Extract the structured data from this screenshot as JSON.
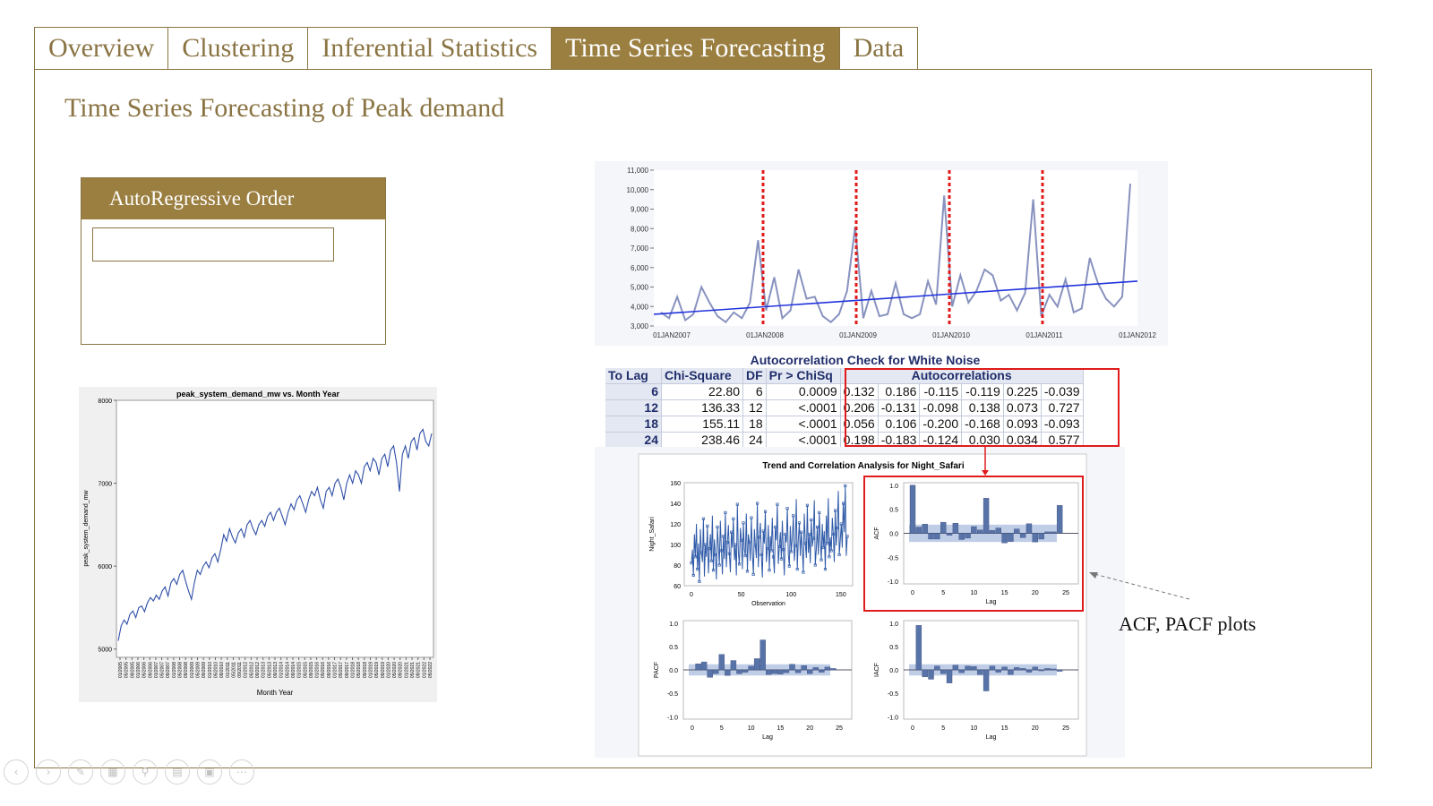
{
  "tabs": [
    {
      "label": "Overview",
      "active": false
    },
    {
      "label": "Clustering",
      "active": false
    },
    {
      "label": "Inferential Statistics",
      "active": false
    },
    {
      "label": "Time Series Forecasting",
      "active": true
    },
    {
      "label": "Data",
      "active": false
    }
  ],
  "page_title": "Time Series Forecasting of Peak demand",
  "ar_order": {
    "label": "AutoRegressive Order",
    "value": ""
  },
  "annotation": "ACF, PACF plots",
  "colors": {
    "accent": "#9b7f40",
    "border": "#8a7443",
    "line_blue": "#2f4fa8",
    "highlight_red": "#e01b1b"
  },
  "white_noise": {
    "title": "Autocorrelation Check for White Noise",
    "headers": [
      "To Lag",
      "Chi-Square",
      "DF",
      "Pr > ChiSq",
      "Autocorrelations"
    ],
    "rows": [
      {
        "lag": "6",
        "chi": "22.80",
        "df": "6",
        "pr": "0.0009",
        "ac": [
          "0.132",
          "0.186",
          "-0.115",
          "-0.119",
          "0.225",
          "-0.039"
        ]
      },
      {
        "lag": "12",
        "chi": "136.33",
        "df": "12",
        "pr": "<.0001",
        "ac": [
          "0.206",
          "-0.131",
          "-0.098",
          "0.138",
          "0.073",
          "0.727"
        ]
      },
      {
        "lag": "18",
        "chi": "155.11",
        "df": "18",
        "pr": "<.0001",
        "ac": [
          "0.056",
          "0.106",
          "-0.200",
          "-0.168",
          "0.093",
          "-0.093"
        ]
      },
      {
        "lag": "24",
        "chi": "238.46",
        "df": "24",
        "pr": "<.0001",
        "ac": [
          "0.198",
          "-0.183",
          "-0.124",
          "0.030",
          "0.034",
          "0.577"
        ]
      }
    ]
  },
  "chart_data": [
    {
      "type": "line",
      "title": "peak_system_demand_mw vs. Month Year",
      "xlabel": "Month Year",
      "ylabel": "peak_system_demand_mw",
      "ylim": [
        4900,
        8000
      ],
      "yticks": [
        "5000",
        "6000",
        "7000",
        "8000"
      ],
      "xticks": [
        "01/2005",
        "05/2005",
        "09/2005",
        "01/2006",
        "05/2006",
        "09/2006",
        "01/2007",
        "05/2007",
        "09/2007",
        "01/2008",
        "05/2008",
        "09/2008",
        "01/2009",
        "05/2009",
        "09/2009",
        "01/2010",
        "05/2010",
        "09/2010",
        "01/2011",
        "05/2011",
        "09/2011",
        "01/2012",
        "05/2012",
        "09/2012",
        "01/2013",
        "05/2013",
        "09/2013",
        "01/2014",
        "05/2014",
        "09/2014",
        "01/2015",
        "05/2015",
        "09/2015",
        "01/2016",
        "05/2016",
        "09/2016",
        "01/2017",
        "05/2017",
        "09/2017",
        "01/2018",
        "05/2018",
        "09/2018",
        "01/2019",
        "05/2019",
        "09/2019",
        "01/2020",
        "05/2020",
        "09/2020",
        "01/2021",
        "05/2021",
        "09/2021",
        "01/2022",
        "05/2022"
      ],
      "series": [
        {
          "name": "peak_system_demand_mw",
          "values": [
            5100,
            5280,
            5350,
            5300,
            5420,
            5460,
            5380,
            5500,
            5520,
            5450,
            5560,
            5620,
            5580,
            5650,
            5600,
            5700,
            5750,
            5640,
            5800,
            5850,
            5780,
            5900,
            5950,
            5820,
            5700,
            5600,
            5800,
            5950,
            5900,
            6000,
            6050,
            5980,
            6100,
            6150,
            6050,
            6200,
            6380,
            6300,
            6450,
            6350,
            6280,
            6400,
            6450,
            6350,
            6500,
            6550,
            6450,
            6380,
            6500,
            6550,
            6480,
            6600,
            6650,
            6550,
            6650,
            6700,
            6600,
            6500,
            6650,
            6750,
            6680,
            6800,
            6850,
            6750,
            6650,
            6800,
            6900,
            6850,
            6950,
            6800,
            6700,
            6900,
            6950,
            6850,
            7000,
            7050,
            6950,
            6800,
            7000,
            7100,
            7000,
            7150,
            7100,
            7000,
            7200,
            7250,
            7150,
            7300,
            7250,
            7100,
            7300,
            7350,
            7200,
            7400,
            7450,
            7250,
            6900,
            7350,
            7450,
            7300,
            7500,
            7550,
            7400,
            7600,
            7650,
            7500,
            7450,
            7600
          ]
        }
      ]
    },
    {
      "type": "line",
      "title": "",
      "ylim": [
        3000,
        11000
      ],
      "yticks": [
        "3,000",
        "4,000",
        "5,000",
        "6,000",
        "7,000",
        "8,000",
        "9,000",
        "10,000",
        "11,000"
      ],
      "xticks": [
        "01JAN2007",
        "01JAN2008",
        "01JAN2009",
        "01JAN2010",
        "01JAN2011",
        "01JAN2012"
      ],
      "series": [
        {
          "name": "series",
          "values": [
            3700,
            3400,
            4500,
            3300,
            3600,
            5000,
            4200,
            3500,
            3200,
            3700,
            3400,
            4200,
            7400,
            3800,
            5500,
            3400,
            3800,
            5900,
            4400,
            4500,
            3500,
            3200,
            3600,
            4800,
            8100,
            3400,
            4800,
            3500,
            3600,
            5200,
            3600,
            3400,
            3600,
            5300,
            4100,
            9700,
            4000,
            5600,
            4200,
            4800,
            5900,
            5600,
            4300,
            4600,
            3800,
            4700,
            9500,
            3500,
            4600,
            4000,
            5400,
            3700,
            3900,
            6500,
            5200,
            4400,
            4000,
            4500,
            10300
          ]
        },
        {
          "name": "trend",
          "values": [
            3600,
            5300
          ]
        }
      ],
      "vlines_at_xtick": [
        1,
        2,
        3,
        4
      ]
    },
    {
      "type": "line",
      "title": "Trend and Correlation Analysis for Night_Safari",
      "xlabel": "Observation",
      "ylabel": "Night_Safari",
      "ylim": [
        60,
        160
      ],
      "yticks": [
        "60",
        "80",
        "100",
        "120",
        "140",
        "160"
      ],
      "xticks": [
        "0",
        "50",
        "100",
        "150"
      ],
      "series": [
        {
          "name": "Night_Safari",
          "values": [
            82,
            95,
            70,
            110,
            88,
            120,
            76,
            101,
            64,
            115,
            92,
            83,
            125,
            69,
            100,
            88,
            118,
            72,
            96,
            110,
            84,
            128,
            75,
            105,
            90,
            66,
            117,
            99,
            80,
            123,
            94,
            71,
            108,
            86,
            131,
            78,
            102,
            119,
            91,
            73,
            112,
            97,
            125,
            85,
            100,
            70,
            139,
            92,
            81,
            116,
            104,
            76,
            121,
            95,
            89,
            130,
            74,
            110,
            102,
            84,
            126,
            93,
            71,
            115,
            99,
            87,
            140,
            78,
            107,
            121,
            90,
            68,
            113,
            101,
            132,
            83,
            96,
            119,
            75,
            108,
            94,
            126,
            88,
            72,
            117,
            104,
            139,
            81,
            98,
            112,
            86,
            123,
            95,
            70,
            110,
            102,
            135,
            90,
            79,
            118,
            93,
            107,
            128,
            84,
            99,
            144,
            76,
            104,
            121,
            89,
            112,
            96,
            73,
            130,
            101,
            87,
            138,
            92,
            110,
            82,
            124,
            98,
            106,
            143,
            80,
            95,
            117,
            90,
            131,
            103,
            85,
            120,
            97,
            113,
            76,
            128,
            101,
            145,
            88,
            107,
            94,
            126,
            110,
            83,
            133,
            99,
            116,
            152,
            90,
            104,
            120,
            97,
            140,
            112,
            157,
            89,
            108
          ]
        }
      ]
    },
    {
      "type": "bar",
      "title": "ACF",
      "ylabel": "ACF",
      "xlabel": "Lag",
      "ylim": [
        -1.0,
        1.0
      ],
      "yticks": [
        "-1.0",
        "-0.5",
        "0.0",
        "0.5",
        "1.0"
      ],
      "xticks": [
        "0",
        "5",
        "10",
        "15",
        "20",
        "25"
      ],
      "categories": [
        "0",
        "1",
        "2",
        "3",
        "4",
        "5",
        "6",
        "7",
        "8",
        "9",
        "10",
        "11",
        "12",
        "13",
        "14",
        "15",
        "16",
        "17",
        "18",
        "19",
        "20",
        "21",
        "22",
        "23",
        "24"
      ],
      "values": [
        1.0,
        0.13,
        0.19,
        -0.12,
        -0.12,
        0.23,
        -0.04,
        0.21,
        -0.13,
        -0.1,
        0.14,
        0.07,
        0.73,
        0.06,
        0.11,
        -0.2,
        -0.17,
        0.09,
        -0.09,
        0.2,
        -0.18,
        -0.12,
        0.03,
        0.03,
        0.58
      ]
    },
    {
      "type": "bar",
      "title": "PACF",
      "ylabel": "PACF",
      "xlabel": "Lag",
      "ylim": [
        -1.0,
        1.0
      ],
      "yticks": [
        "-1.0",
        "-0.5",
        "0.0",
        "0.5",
        "1.0"
      ],
      "xticks": [
        "0",
        "5",
        "10",
        "15",
        "20",
        "25"
      ],
      "categories": [
        "1",
        "2",
        "3",
        "4",
        "5",
        "6",
        "7",
        "8",
        "9",
        "10",
        "11",
        "12",
        "13",
        "14",
        "15",
        "16",
        "17",
        "18",
        "19",
        "20",
        "21",
        "22",
        "23",
        "24"
      ],
      "values": [
        0.13,
        0.17,
        -0.16,
        -0.08,
        0.33,
        -0.12,
        0.2,
        -0.08,
        -0.05,
        0.08,
        0.24,
        0.64,
        -0.1,
        -0.08,
        -0.09,
        -0.06,
        0.12,
        -0.06,
        0.09,
        -0.08,
        0.05,
        -0.05,
        0.06,
        0.03
      ]
    },
    {
      "type": "bar",
      "title": "IACF",
      "ylabel": "IACF",
      "xlabel": "Lag",
      "ylim": [
        -1.0,
        1.0
      ],
      "yticks": [
        "-1.0",
        "-0.5",
        "0.0",
        "0.5",
        "1.0"
      ],
      "xticks": [
        "0",
        "5",
        "10",
        "15",
        "20",
        "25"
      ],
      "categories": [
        "1",
        "2",
        "3",
        "4",
        "5",
        "6",
        "7",
        "8",
        "9",
        "10",
        "11",
        "12",
        "13",
        "14",
        "15",
        "16",
        "17",
        "18",
        "19",
        "20",
        "21",
        "22",
        "23",
        "24"
      ],
      "values": [
        0.95,
        -0.15,
        -0.2,
        0.08,
        -0.08,
        -0.28,
        0.1,
        -0.06,
        0.08,
        0.07,
        -0.1,
        -0.45,
        0.08,
        -0.05,
        0.06,
        -0.1,
        0.05,
        0.03,
        -0.05,
        0.06,
        -0.02,
        0.03,
        0.02,
        -0.03
      ]
    }
  ]
}
